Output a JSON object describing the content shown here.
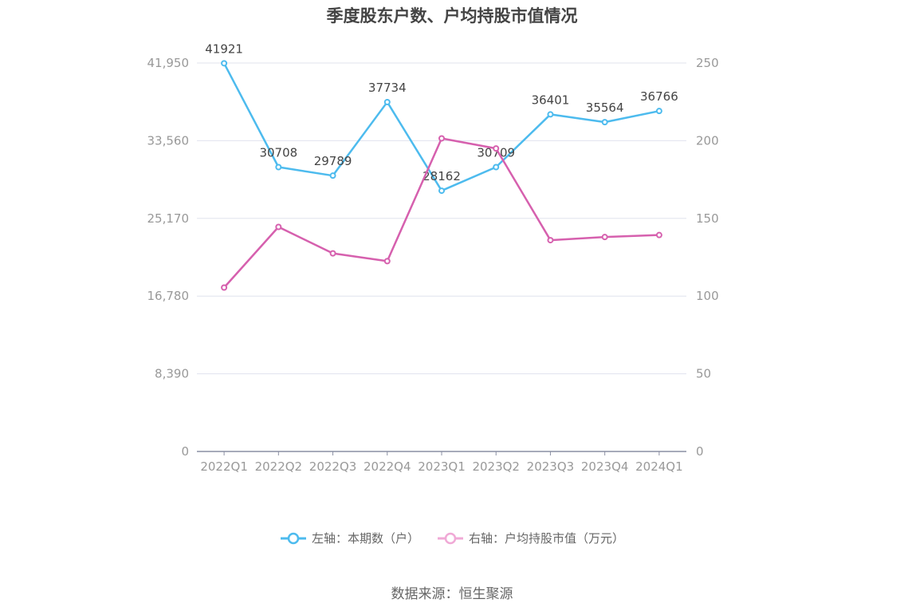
{
  "chart_data": {
    "type": "line",
    "title": "季度股东户数、户均持股市值情况",
    "categories": [
      "2022Q1",
      "2022Q2",
      "2022Q3",
      "2022Q4",
      "2023Q1",
      "2023Q2",
      "2023Q3",
      "2023Q4",
      "2024Q1"
    ],
    "left_axis": {
      "ticks": [
        "0",
        "8,390",
        "16,780",
        "25,170",
        "33,560",
        "41,950"
      ],
      "ylim": [
        0,
        41950
      ]
    },
    "right_axis": {
      "ticks": [
        "0",
        "50",
        "100",
        "150",
        "200",
        "250"
      ],
      "ylim": [
        0,
        250
      ]
    },
    "series": [
      {
        "name": "左轴：本期数（户）",
        "axis": "left",
        "color": "#4dbbee",
        "values": [
          41921,
          30708,
          29789,
          37734,
          28162,
          30709,
          36401,
          35564,
          36766
        ],
        "labels": [
          "41921",
          "30708",
          "29789",
          "37734",
          "28162",
          "30709",
          "36401",
          "35564",
          "36766"
        ]
      },
      {
        "name": "右轴：户均持股市值（万元）",
        "axis": "right",
        "color": "#d660ae",
        "values": [
          105.5,
          144.5,
          127.5,
          122.5,
          201.5,
          195,
          136,
          138,
          139.3
        ]
      }
    ],
    "grid": true,
    "legend_position": "bottom",
    "legend_items": [
      "左轴：本期数（户）",
      "右轴：户均持股市值（万元）"
    ],
    "source": "数据来源：恒生聚源"
  }
}
